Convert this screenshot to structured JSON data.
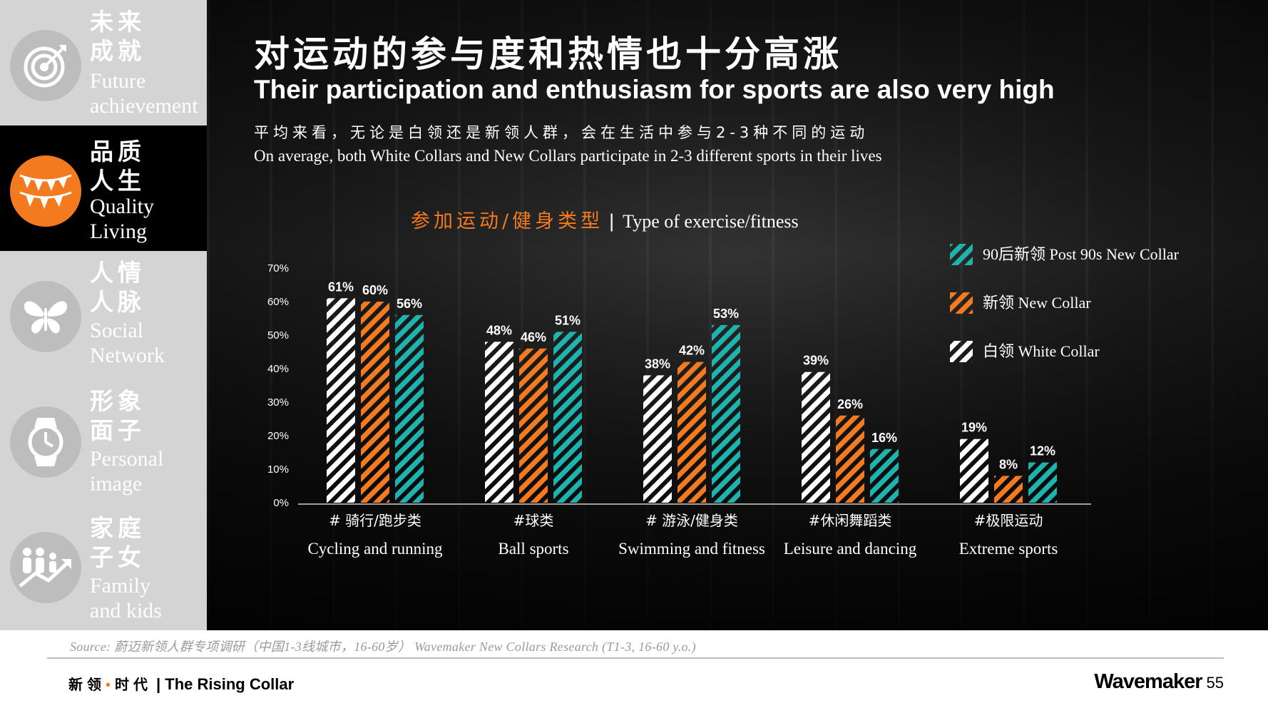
{
  "sidebar": {
    "items": [
      {
        "zh": "未来\n成就",
        "en": "Future\nachievement",
        "icon": "target-icon",
        "active": false
      },
      {
        "zh": "品质\n人生",
        "en": "Quality\nLiving",
        "icon": "bunting-flags-icon",
        "active": true
      },
      {
        "zh": "人情\n人脉",
        "en": "Social\nNetwork",
        "icon": "butterfly-icon",
        "active": false
      },
      {
        "zh": "形象\n面子",
        "en": "Personal\nimage",
        "icon": "watch-icon",
        "active": false
      },
      {
        "zh": "家庭\n子女",
        "en": "Family\nand kids",
        "icon": "family-growth-icon",
        "active": false
      }
    ]
  },
  "header": {
    "title_zh": "对运动的参与度和热情也十分高涨",
    "title_en": "Their participation and enthusiasm for sports are also very high",
    "subtitle_zh": "平均来看，无论是白领还是新领人群，会在生活中参与2-3种不同的运动",
    "subtitle_en": "On average, both White Collars and New Collars participate in 2-3 different sports in their lives"
  },
  "colors": {
    "accent": "#f47a1f",
    "teal": "#1eb3ae",
    "white": "#ffffff",
    "sidebar_bg": "#d4d4d4",
    "active_bg": "#000000"
  },
  "chart_data": {
    "type": "bar",
    "title_zh": "参加运动/健身类型",
    "title_sep": "|",
    "title_en": "Type of exercise/fitness",
    "categories": [
      {
        "zh": "# 骑行/跑步类",
        "en": "Cycling and running"
      },
      {
        "zh": "#球类",
        "en": "Ball sports"
      },
      {
        "zh": "# 游泳/健身类",
        "en": "Swimming and fitness"
      },
      {
        "zh": "#休闲舞蹈类",
        "en": "Leisure and dancing"
      },
      {
        "zh": "#极限运动",
        "en": "Extreme sports"
      }
    ],
    "series": [
      {
        "name": "白领 White Collar",
        "color": "#ffffff",
        "values": [
          61,
          48,
          38,
          39,
          19
        ],
        "labels": [
          "61%",
          "48%",
          "38%",
          "39%",
          "19%"
        ]
      },
      {
        "name": "新领 New Collar",
        "color": "#f47a1f",
        "values": [
          60,
          46,
          42,
          26,
          8
        ],
        "labels": [
          "60%",
          "46%",
          "42%",
          "26%",
          "8%"
        ]
      },
      {
        "name": "90后新领 Post 90s New Collar",
        "color": "#1eb3ae",
        "values": [
          56,
          51,
          53,
          16,
          12
        ],
        "labels": [
          "56%",
          "51%",
          "53%",
          "16%",
          "12%"
        ]
      }
    ],
    "legend_order": [
      2,
      1,
      0
    ],
    "yticks": [
      "0%",
      "10%",
      "20%",
      "30%",
      "40%",
      "50%",
      "60%",
      "70%"
    ],
    "ylim": [
      0,
      70
    ],
    "grid": false,
    "legend_position": "top-right"
  },
  "source": "Source: 蔚迈新领人群专项调研（中国1-3线城市，16-60岁） Wavemaker New Collars Research (T1-3, 16-60 y.o.)",
  "footer": {
    "zh": "新领",
    "dot": "•",
    "zh2": "时代",
    "en": "| The Rising Collar",
    "brand": "Wavemaker",
    "page": "55"
  }
}
